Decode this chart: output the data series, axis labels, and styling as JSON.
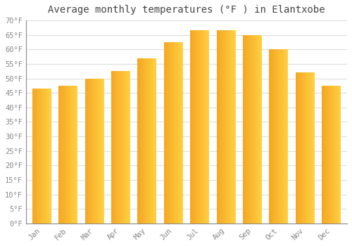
{
  "title": "Average monthly temperatures (°F ) in Elantxobe",
  "months": [
    "Jan",
    "Feb",
    "Mar",
    "Apr",
    "May",
    "Jun",
    "Jul",
    "Aug",
    "Sep",
    "Oct",
    "Nov",
    "Dec"
  ],
  "values": [
    46.5,
    47.5,
    50.0,
    52.5,
    57.0,
    62.5,
    66.5,
    66.5,
    65.0,
    60.0,
    52.0,
    47.5
  ],
  "bar_color_left": "#F5A623",
  "bar_color_right": "#FFD040",
  "ylim": [
    0,
    70
  ],
  "ytick_step": 5,
  "background_color": "#ffffff",
  "grid_color": "#dddddd",
  "title_fontsize": 10,
  "tick_fontsize": 7.5,
  "tick_color": "#888888",
  "title_color": "#444444",
  "font_family": "monospace",
  "bar_width": 0.72
}
